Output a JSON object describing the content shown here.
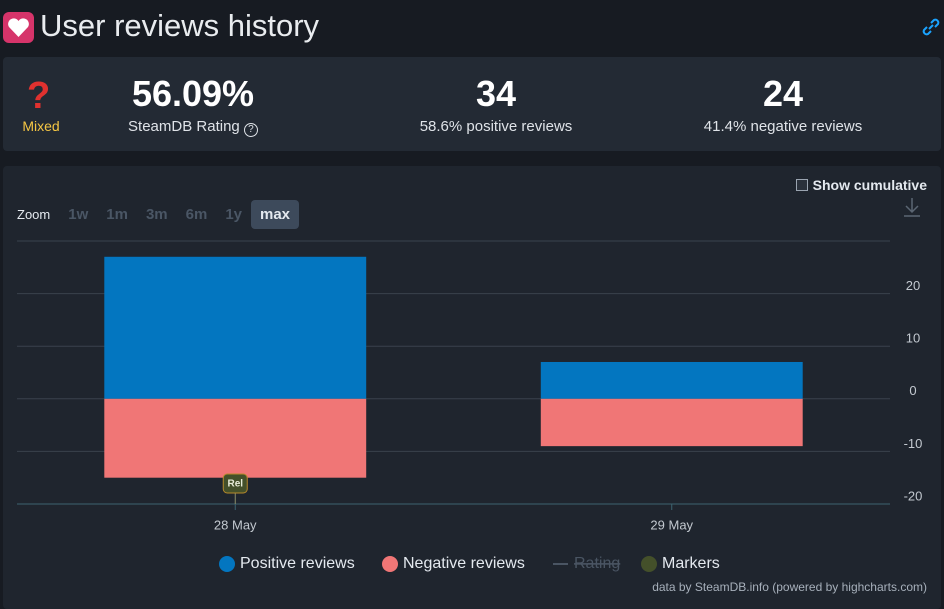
{
  "header": {
    "title": "User reviews history"
  },
  "stats": {
    "verdict": "Mixed",
    "rating": "56.09%",
    "rating_label": "SteamDB Rating",
    "positive": "34",
    "positive_label": "58.6% positive reviews",
    "negative": "24",
    "negative_label": "41.4% negative reviews"
  },
  "controls": {
    "cumulative": "Show cumulative",
    "zoom": "Zoom",
    "zoom_options": [
      "1w",
      "1m",
      "3m",
      "6m",
      "1y",
      "max"
    ],
    "zoom_active": 5
  },
  "credit": "data by SteamDB.info (powered by highcharts.com)",
  "chart_data": {
    "type": "bar",
    "stacked": true,
    "categories": [
      "28 May",
      "29 May"
    ],
    "series": [
      {
        "name": "Positive reviews",
        "color": "#0376c0",
        "values": [
          27,
          7
        ]
      },
      {
        "name": "Negative reviews",
        "color": "#f07676",
        "values": [
          -15,
          -9
        ]
      }
    ],
    "hidden_series": [
      {
        "name": "Rating"
      }
    ],
    "markers": {
      "name": "Markers",
      "color": "#44502a",
      "labels": [
        "Rel"
      ],
      "categories": [
        0
      ]
    },
    "ylim": [
      -20,
      30
    ],
    "yticks": [
      -20,
      -10,
      0,
      10,
      20
    ],
    "grid": true
  }
}
